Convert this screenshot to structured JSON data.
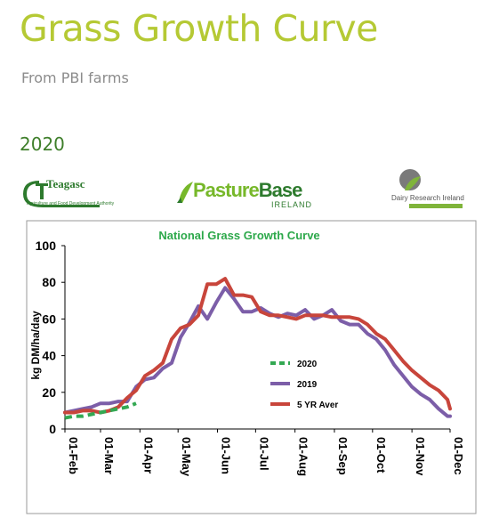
{
  "header": {
    "title": "Grass Growth Curve",
    "subtitle": "From PBI farms",
    "year": "2020"
  },
  "logos": {
    "teagasc": "Teagasc",
    "teagasc_sub": "Agriculture and Food Development Authority",
    "pasturebase_a": "Pasture",
    "pasturebase_b": "Base",
    "pasturebase_sub": "IRELAND",
    "dri": "Dairy Research Ireland"
  },
  "chart_data": {
    "type": "line",
    "title": "National Grass Growth Curve",
    "ylabel": "kg DM/ha/day",
    "xlabel": "",
    "ylim": [
      0,
      100
    ],
    "yticks": [
      0,
      20,
      40,
      60,
      80,
      100
    ],
    "xticks": [
      "01-Feb",
      "01-Mar",
      "01-Apr",
      "01-May",
      "01-Jun",
      "01-Jul",
      "01-Aug",
      "01-Sep",
      "01-Oct",
      "01-Nov",
      "01-Dec"
    ],
    "legend_position": "center-left",
    "grid": false,
    "series": [
      {
        "name": "2020",
        "color": "#33a852",
        "style": "dashed",
        "x": [
          "01-Feb",
          "08-Feb",
          "15-Feb",
          "22-Feb",
          "01-Mar",
          "08-Mar",
          "15-Mar",
          "22-Mar",
          "29-Mar"
        ],
        "values": [
          6,
          7,
          7,
          8,
          9,
          10,
          11,
          12,
          14
        ]
      },
      {
        "name": "2019",
        "color": "#7c5ea8",
        "style": "solid",
        "x": [
          "01-Feb",
          "08-Feb",
          "15-Feb",
          "22-Feb",
          "01-Mar",
          "08-Mar",
          "15-Mar",
          "22-Mar",
          "29-Mar",
          "05-Apr",
          "12-Apr",
          "19-Apr",
          "26-Apr",
          "03-May",
          "10-May",
          "17-May",
          "24-May",
          "31-May",
          "07-Jun",
          "14-Jun",
          "21-Jun",
          "28-Jun",
          "05-Jul",
          "12-Jul",
          "19-Jul",
          "26-Jul",
          "02-Aug",
          "09-Aug",
          "16-Aug",
          "23-Aug",
          "30-Aug",
          "06-Sep",
          "13-Sep",
          "20-Sep",
          "27-Sep",
          "04-Oct",
          "11-Oct",
          "18-Oct",
          "25-Oct",
          "01-Nov",
          "08-Nov",
          "15-Nov",
          "22-Nov",
          "29-Nov",
          "01-Dec"
        ],
        "values": [
          9,
          10,
          11,
          12,
          14,
          14,
          15,
          15,
          23,
          27,
          28,
          33,
          36,
          50,
          58,
          67,
          60,
          69,
          77,
          71,
          64,
          64,
          66,
          63,
          61,
          63,
          62,
          65,
          60,
          62,
          65,
          59,
          57,
          57,
          52,
          49,
          43,
          35,
          29,
          23,
          19,
          16,
          11,
          7,
          7
        ]
      },
      {
        "name": "5 YR Aver",
        "color": "#c8453b",
        "style": "solid",
        "x": [
          "01-Feb",
          "08-Feb",
          "15-Feb",
          "22-Feb",
          "01-Mar",
          "08-Mar",
          "15-Mar",
          "22-Mar",
          "29-Mar",
          "05-Apr",
          "12-Apr",
          "19-Apr",
          "26-Apr",
          "03-May",
          "10-May",
          "17-May",
          "24-May",
          "31-May",
          "07-Jun",
          "14-Jun",
          "21-Jun",
          "28-Jun",
          "05-Jul",
          "12-Jul",
          "19-Jul",
          "26-Jul",
          "02-Aug",
          "09-Aug",
          "16-Aug",
          "23-Aug",
          "30-Aug",
          "06-Sep",
          "13-Sep",
          "20-Sep",
          "27-Sep",
          "04-Oct",
          "11-Oct",
          "18-Oct",
          "25-Oct",
          "01-Nov",
          "08-Nov",
          "15-Nov",
          "22-Nov",
          "29-Nov",
          "01-Dec"
        ],
        "values": [
          9,
          9,
          10,
          10,
          9,
          10,
          12,
          17,
          21,
          29,
          32,
          36,
          49,
          55,
          57,
          62,
          79,
          79,
          82,
          73,
          73,
          72,
          64,
          62,
          62,
          61,
          60,
          62,
          62,
          62,
          61,
          61,
          61,
          60,
          57,
          52,
          49,
          43,
          37,
          32,
          28,
          24,
          21,
          16,
          11
        ]
      }
    ]
  }
}
